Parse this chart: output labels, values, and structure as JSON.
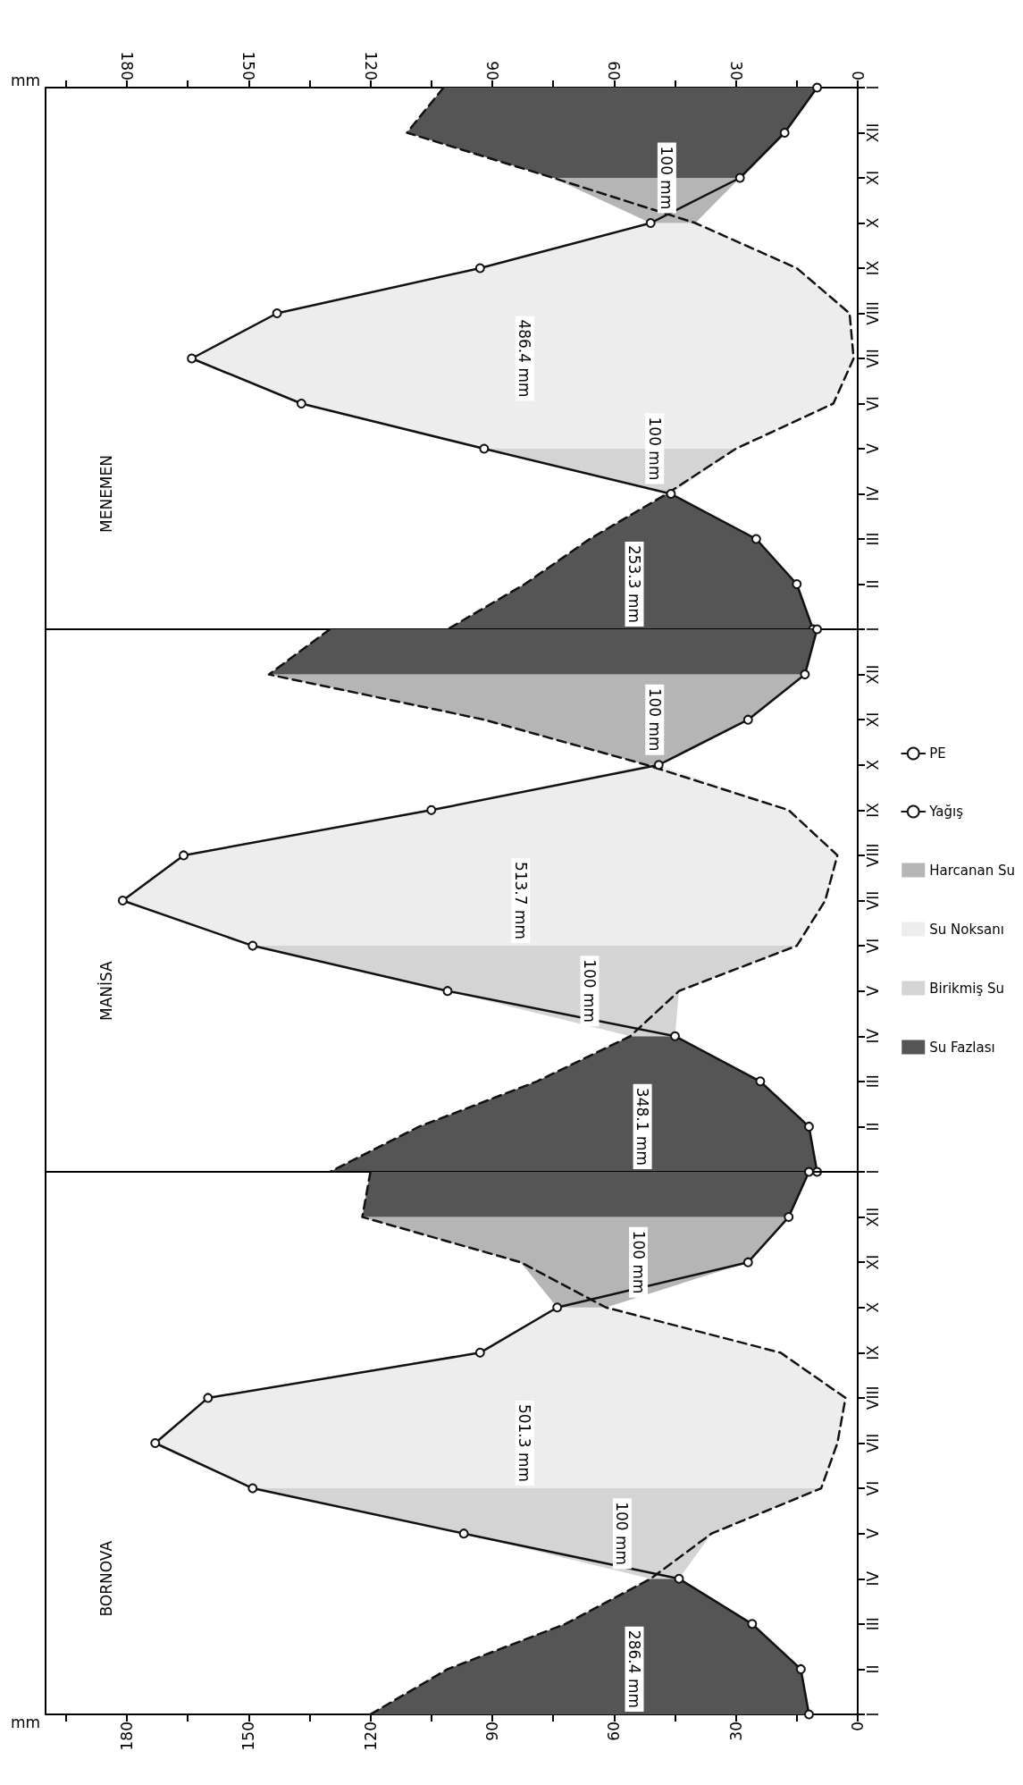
{
  "chart_data": [
    {
      "type": "line",
      "xlim": [
        200,
        0
      ],
      "x2lim": [
        200,
        0
      ],
      "x2label": "mm",
      "x2ticks": [
        0,
        {
          "value": 15,
          "label": null
        },
        30,
        {
          "value": 45,
          "label": null
        },
        60,
        {
          "value": 75,
          "label": null
        },
        90,
        {
          "value": 105,
          "label": null
        },
        120,
        {
          "value": 135,
          "label": null
        },
        150,
        {
          "value": 165,
          "label": null
        },
        180,
        {
          "value": 195,
          "label": null
        }
      ],
      "categories": [
        "I",
        "XII",
        "XI",
        "X",
        "IX",
        "VIII",
        "VII",
        "VI",
        "V",
        "IV",
        "III",
        "II",
        null
      ],
      "orientation": "horizontal",
      "annotations": [
        "MENEMEN",
        "253.3 mm",
        "100 mm",
        "486.4 mm",
        "100 mm"
      ],
      "series": [
        {
          "color": "#555555",
          "values": [
            null,
            null,
            null,
            null,
            null,
            null,
            null,
            null,
            null,
            null,
            null,
            null,
            null
          ],
          "lower": [
            null,
            null,
            null,
            null,
            null,
            null,
            null,
            null,
            null,
            46,
            25,
            15,
            11
          ],
          "upper": [
            null,
            null,
            null,
            null,
            null,
            null,
            null,
            null,
            null,
            47,
            66,
            82,
            101
          ]
        },
        {
          "color": "#d4d4d4",
          "values": [
            null,
            null,
            null,
            null,
            null,
            null,
            null,
            null,
            null,
            null,
            null,
            null,
            null
          ],
          "lower": [
            null,
            null,
            null,
            null,
            null,
            null,
            null,
            null,
            30,
            46,
            null,
            null,
            null
          ],
          "upper": [
            null,
            null,
            null,
            null,
            null,
            null,
            null,
            null,
            92,
            47,
            null,
            null,
            null
          ]
        },
        {
          "color": "#ededed",
          "values": [
            null,
            null,
            null,
            null,
            null,
            null,
            null,
            null,
            null,
            null,
            null,
            null,
            null
          ],
          "lower": [
            null,
            null,
            null,
            40,
            15,
            2,
            1,
            6,
            30,
            null,
            null,
            null,
            null
          ],
          "upper": [
            null,
            null,
            null,
            51,
            93,
            143,
            164,
            137,
            92,
            null,
            null,
            null,
            null
          ]
        },
        {
          "color": "#b5b5b5",
          "values": [
            null,
            null,
            null,
            null,
            null,
            null,
            null,
            null,
            null,
            null,
            null,
            null,
            null
          ],
          "lower": [
            null,
            null,
            29,
            40,
            null,
            null,
            null,
            null,
            null,
            null,
            null,
            null,
            null
          ],
          "upper": [
            null,
            null,
            75,
            51,
            null,
            null,
            null,
            null,
            null,
            null,
            null,
            null,
            null
          ]
        },
        {
          "color": "#555555",
          "values": [
            null,
            null,
            null,
            null,
            null,
            null,
            null,
            null,
            null,
            null,
            null,
            null,
            null
          ],
          "lower": [
            10,
            18,
            29,
            null,
            null,
            null,
            null,
            null,
            null,
            null,
            null,
            null,
            null
          ],
          "upper": [
            102,
            111,
            75,
            null,
            null,
            null,
            null,
            null,
            null,
            null,
            null,
            null,
            null
          ]
        },
        {
          "color": "#111111",
          "line_style": "dashed",
          "marker": "none",
          "values": [
            102,
            111,
            75,
            40,
            15,
            2,
            1,
            6,
            30,
            47,
            66,
            82,
            101
          ]
        },
        {
          "color": "#111111",
          "line_style": "solid",
          "marker": "circle",
          "values": [
            10,
            18,
            29,
            51,
            93,
            143,
            164,
            137,
            92,
            46,
            25,
            15,
            11
          ]
        }
      ]
    },
    {
      "type": "line",
      "xlim": [
        200,
        0
      ],
      "tick_labels": "y",
      "legend": "right",
      "categories": [
        "I",
        "XII",
        "XI",
        "X",
        "IX",
        "VIII",
        "VII",
        "VI",
        "V",
        "IV",
        "III",
        "II",
        null
      ],
      "orientation": "horizontal",
      "annotations": [
        "MANİSA",
        "348.1 mm",
        "100 mm",
        "513.7 mm",
        "100 mm"
      ],
      "series": [
        {
          "name": "Su Fazlası",
          "color": "#555555",
          "values": [
            null,
            null,
            null,
            null,
            null,
            null,
            null,
            null,
            null,
            null,
            null,
            null,
            null
          ],
          "lower": [
            null,
            null,
            null,
            null,
            null,
            null,
            null,
            null,
            null,
            45,
            24,
            12,
            10
          ],
          "upper": [
            null,
            null,
            null,
            null,
            null,
            null,
            null,
            null,
            null,
            56,
            79,
            108,
            130
          ]
        },
        {
          "name": "Birikmiş Su",
          "color": "#d4d4d4",
          "values": [
            null,
            null,
            null,
            null,
            null,
            null,
            null,
            null,
            null,
            null,
            null,
            null,
            null
          ],
          "lower": [
            null,
            null,
            null,
            null,
            null,
            null,
            null,
            15,
            44,
            45,
            null,
            null,
            null
          ],
          "upper": [
            null,
            null,
            null,
            null,
            null,
            null,
            null,
            149,
            101,
            56,
            null,
            null,
            null
          ]
        },
        {
          "name": "Su Noksanı",
          "color": "#ededed",
          "values": [
            null,
            null,
            null,
            null,
            null,
            null,
            null,
            null,
            null,
            null,
            null,
            null,
            null
          ],
          "lower": [
            null,
            null,
            null,
            49,
            17,
            5,
            8,
            15,
            null,
            null,
            null,
            null,
            null
          ],
          "upper": [
            null,
            null,
            null,
            52,
            105,
            166,
            181,
            149,
            null,
            null,
            null,
            null,
            null
          ]
        },
        {
          "name": "Harcanan Su",
          "color": "#b5b5b5",
          "values": [
            null,
            null,
            null,
            null,
            null,
            null,
            null,
            null,
            null,
            null,
            null,
            null,
            null
          ],
          "lower": [
            null,
            13,
            27,
            49,
            null,
            null,
            null,
            null,
            null,
            null,
            null,
            null,
            null
          ],
          "upper": [
            null,
            145,
            92,
            52,
            null,
            null,
            null,
            null,
            null,
            null,
            null,
            null,
            null
          ]
        },
        {
          "color": "#555555",
          "values": [
            null,
            null,
            null,
            null,
            null,
            null,
            null,
            null,
            null,
            null,
            null,
            null,
            null
          ],
          "lower": [
            10,
            13,
            null,
            null,
            null,
            null,
            null,
            null,
            null,
            null,
            null,
            null,
            null
          ],
          "upper": [
            130,
            145,
            null,
            null,
            null,
            null,
            null,
            null,
            null,
            null,
            null,
            null,
            null
          ]
        },
        {
          "name": "Yağış",
          "color": "#111111",
          "line_style": "dashed",
          "marker": "none",
          "values": [
            130,
            145,
            92,
            52,
            17,
            5,
            8,
            15,
            44,
            56,
            79,
            108,
            130
          ]
        },
        {
          "name": "PE",
          "color": "#111111",
          "line_style": "solid",
          "marker": "circle",
          "values": [
            10,
            13,
            27,
            49,
            105,
            166,
            181,
            149,
            101,
            45,
            24,
            12,
            10
          ]
        }
      ]
    },
    {
      "type": "line",
      "xlim": [
        200,
        0
      ],
      "xlabel": "mm",
      "xticks": [
        0,
        {
          "value": 15,
          "label": null
        },
        30,
        {
          "value": 45,
          "label": null
        },
        60,
        {
          "value": 75,
          "label": null
        },
        90,
        {
          "value": 105,
          "label": null
        },
        120,
        {
          "value": 135,
          "label": null
        },
        150,
        {
          "value": 165,
          "label": null
        },
        180,
        {
          "value": 195,
          "label": null
        }
      ],
      "categories": [
        "I",
        "XII",
        "XI",
        "X",
        "IX",
        "VIII",
        "VII",
        "VI",
        "V",
        "IV",
        "III",
        "II",
        "I"
      ],
      "orientation": "horizontal",
      "annotations": [
        "BORNOVA",
        "286.4 mm",
        "100 mm",
        "501.3 mm",
        "100 mm"
      ],
      "series": [
        {
          "color": "#555555",
          "values": [
            null,
            null,
            null,
            null,
            null,
            null,
            null,
            null,
            null,
            null,
            null,
            null,
            null
          ],
          "lower": [
            null,
            null,
            null,
            null,
            null,
            null,
            null,
            null,
            null,
            44,
            26,
            14,
            12
          ],
          "upper": [
            null,
            null,
            null,
            null,
            null,
            null,
            null,
            null,
            null,
            51,
            72,
            101,
            120
          ]
        },
        {
          "color": "#d4d4d4",
          "values": [
            null,
            null,
            null,
            null,
            null,
            null,
            null,
            null,
            null,
            null,
            null,
            null,
            null
          ],
          "lower": [
            null,
            null,
            null,
            null,
            null,
            null,
            null,
            9,
            36,
            44,
            null,
            null,
            null
          ],
          "upper": [
            null,
            null,
            null,
            null,
            null,
            null,
            null,
            149,
            97,
            51,
            null,
            null,
            null
          ]
        },
        {
          "color": "#ededed",
          "values": [
            null,
            null,
            null,
            null,
            null,
            null,
            null,
            null,
            null,
            null,
            null,
            null,
            null
          ],
          "lower": [
            null,
            null,
            null,
            62,
            19,
            3,
            5,
            9,
            null,
            null,
            null,
            null,
            null
          ],
          "upper": [
            null,
            null,
            null,
            74,
            93,
            160,
            173,
            149,
            null,
            null,
            null,
            null,
            null
          ]
        },
        {
          "color": "#b5b5b5",
          "values": [
            null,
            null,
            null,
            null,
            null,
            null,
            null,
            null,
            null,
            null,
            null,
            null,
            null
          ],
          "lower": [
            null,
            17,
            27,
            62,
            null,
            null,
            null,
            null,
            null,
            null,
            null,
            null,
            null
          ],
          "upper": [
            null,
            122,
            83,
            74,
            null,
            null,
            null,
            null,
            null,
            null,
            null,
            null,
            null
          ]
        },
        {
          "color": "#555555",
          "values": [
            null,
            null,
            null,
            null,
            null,
            null,
            null,
            null,
            null,
            null,
            null,
            null,
            null
          ],
          "lower": [
            12,
            17,
            null,
            null,
            null,
            null,
            null,
            null,
            null,
            null,
            null,
            null,
            null
          ],
          "upper": [
            120,
            122,
            null,
            null,
            null,
            null,
            null,
            null,
            null,
            null,
            null,
            null,
            null
          ]
        },
        {
          "color": "#111111",
          "line_style": "dashed",
          "marker": "none",
          "values": [
            120,
            122,
            83,
            62,
            19,
            3,
            5,
            9,
            36,
            51,
            72,
            101,
            120
          ]
        },
        {
          "color": "#111111",
          "line_style": "solid",
          "marker": "circle",
          "values": [
            12,
            17,
            27,
            74,
            93,
            160,
            173,
            149,
            97,
            44,
            26,
            14,
            12
          ]
        }
      ]
    }
  ]
}
